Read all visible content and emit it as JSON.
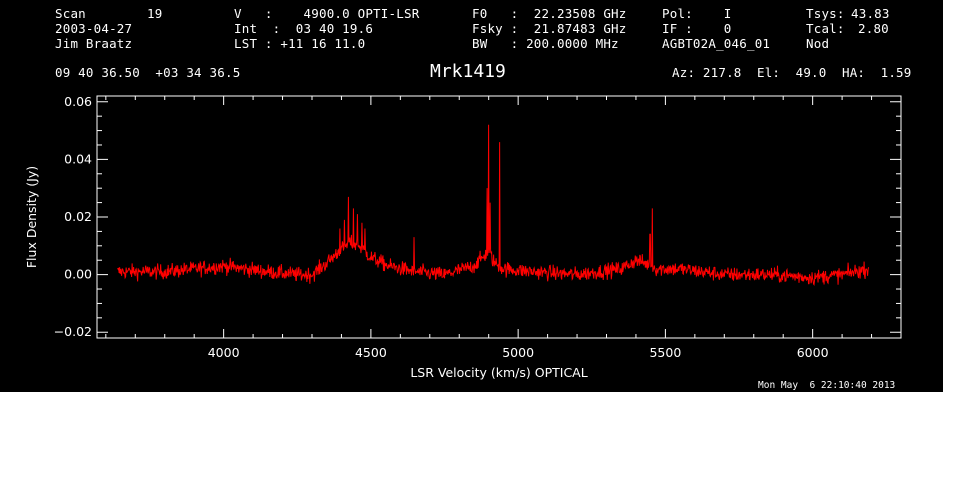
{
  "header": {
    "col1": {
      "scan_label": "Scan",
      "scan_value": "19",
      "date": "2003-04-27",
      "observer": "Jim Braatz"
    },
    "col2": {
      "v_line": "V   :    4900.0 OPTI-LSR",
      "int_line": "Int  :  03 40 19.6",
      "lst_line": "LST : +11 16 11.0"
    },
    "col3": {
      "f0_line": "F0   :  22.23508 GHz",
      "fsky_line": "Fsky :  21.87483 GHz",
      "bw_line": "BW   : 200.0000 MHz"
    },
    "col4": {
      "pol_line": "Pol:    I",
      "if_line": "IF :    0",
      "project": "AGBT02A_046_01"
    },
    "col5": {
      "tsys_label": "Tsys:",
      "tsys_value": "43.83",
      "tcal_label": "Tcal:",
      "tcal_value": "2.80",
      "mode": "Nod"
    },
    "coords": "09 40 36.50  +03 34 36.5",
    "source": "Mrk1419",
    "pointing": "Az: 217.8  El:  49.0  HA:  1.59"
  },
  "timestamp": "Mon May  6 22:10:40 2013",
  "colors": {
    "background": "#000000",
    "axes": "#ffffff",
    "trace": "#ff0000"
  },
  "chart_data": {
    "type": "line",
    "title": "Mrk1419",
    "xlabel": "LSR Velocity (km/s) OPTICAL",
    "ylabel": "Flux Density (Jy)",
    "xlim": [
      3570,
      6300
    ],
    "ylim": [
      -0.022,
      0.062
    ],
    "xticks": [
      4000,
      4500,
      5000,
      5500,
      6000
    ],
    "xtick_labels": [
      "4000",
      "4500",
      "5000",
      "5500",
      "6000"
    ],
    "yticks": [
      -0.02,
      0.0,
      0.02,
      0.04,
      0.06
    ],
    "ytick_labels": [
      "−0.02",
      "0.00",
      "0.02",
      "0.04",
      "0.06"
    ],
    "grid": false,
    "series": [
      {
        "color": "#ff0000",
        "x_start": 3640,
        "x_end": 6190,
        "noise_rms": 0.0018,
        "baseline_x": [
          3640,
          3800,
          4000,
          4150,
          4250,
          4300,
          4350,
          4400,
          4430,
          4460,
          4500,
          4560,
          4650,
          4750,
          4850,
          4880,
          4900,
          4920,
          4950,
          5050,
          5200,
          5350,
          5400,
          5430,
          5470,
          5550,
          5700,
          5850,
          6000,
          6100,
          6190
        ],
        "baseline_y": [
          0.001,
          0.001,
          0.003,
          0.001,
          0.0,
          0.0,
          0.004,
          0.009,
          0.011,
          0.01,
          0.006,
          0.003,
          0.001,
          0.0,
          0.003,
          0.006,
          0.008,
          0.004,
          0.002,
          0.001,
          0.0,
          0.002,
          0.005,
          0.004,
          0.002,
          0.002,
          0.0,
          0.0,
          -0.001,
          0.0,
          0.002
        ],
        "peaks": [
          {
            "x": 4423,
            "y": 0.027
          },
          {
            "x": 4440,
            "y": 0.023
          },
          {
            "x": 4455,
            "y": 0.021
          },
          {
            "x": 4410,
            "y": 0.019
          },
          {
            "x": 4470,
            "y": 0.018
          },
          {
            "x": 4395,
            "y": 0.016
          },
          {
            "x": 4480,
            "y": 0.016
          },
          {
            "x": 4647,
            "y": 0.013
          },
          {
            "x": 4899,
            "y": 0.052
          },
          {
            "x": 4895,
            "y": 0.03
          },
          {
            "x": 4905,
            "y": 0.025
          },
          {
            "x": 4937,
            "y": 0.046
          },
          {
            "x": 5455,
            "y": 0.023
          },
          {
            "x": 5448,
            "y": 0.014
          }
        ]
      }
    ]
  }
}
